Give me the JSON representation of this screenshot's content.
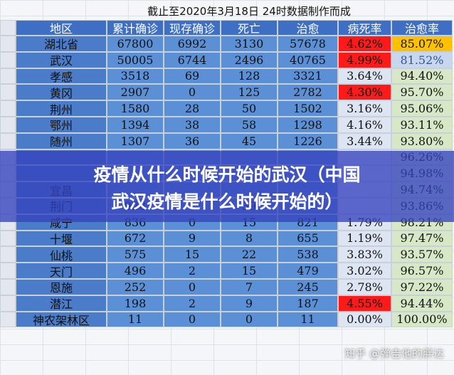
{
  "header": {
    "title": "截止至2020年3月18日  24时数据制作而成"
  },
  "table": {
    "columns": [
      "地区",
      "累计确诊",
      "现存确诊",
      "死亡",
      "治愈",
      "病死率",
      "治愈率"
    ],
    "rows": [
      [
        "湖北省",
        "67800",
        "6992",
        "3130",
        "57678",
        "4.62%",
        "85.07%"
      ],
      [
        "武汉",
        "50005",
        "6744",
        "2496",
        "40765",
        "4.99%",
        "81.52%"
      ],
      [
        "孝感",
        "3518",
        "69",
        "128",
        "3321",
        "3.64%",
        "94.40%"
      ],
      [
        "黄冈",
        "2907",
        "0",
        "125",
        "2782",
        "4.30%",
        "95.70%"
      ],
      [
        "荆州",
        "1580",
        "28",
        "50",
        "1502",
        "3.16%",
        "95.06%"
      ],
      [
        "鄂州",
        "1394",
        "38",
        "58",
        "1298",
        "4.16%",
        "93.11%"
      ],
      [
        "随州",
        "1307",
        "36",
        "45",
        "1226",
        "3.44%",
        "93.80%"
      ],
      [
        null,
        null,
        null,
        null,
        null,
        null,
        "96.26%"
      ],
      [
        null,
        null,
        null,
        null,
        null,
        null,
        "94.98%"
      ],
      [
        "宜昌",
        null,
        null,
        null,
        null,
        null,
        "94.74%"
      ],
      [
        "荆门",
        "928",
        null,
        "39",
        null,
        null,
        "93.86%"
      ],
      [
        "咸宁",
        "836",
        "0",
        "15",
        "821",
        "1.79%",
        "98.21%"
      ],
      [
        "十堰",
        "672",
        "9",
        "8",
        "655",
        "1.19%",
        "97.47%"
      ],
      [
        "仙桃",
        "575",
        "15",
        "22",
        "538",
        "3.83%",
        "93.57%"
      ],
      [
        "天门",
        "496",
        "2",
        "15",
        "479",
        "3.02%",
        "96.57%"
      ],
      [
        "恩施",
        "252",
        "0",
        "7",
        "245",
        "2.78%",
        "97.22%"
      ],
      [
        "潜江",
        "198",
        "2",
        "9",
        "187",
        "4.55%",
        "94.44%"
      ],
      [
        "神农架林区",
        "11",
        "0",
        "0",
        "11",
        "0.00%",
        "100.00%"
      ]
    ]
  },
  "banner": {
    "lines": [
      "疫情从什么时候开始的武汉（中国",
      "武汉疫情是什么时候开始的）"
    ]
  },
  "watermark": "知乎 @弹吉他的胖达"
}
